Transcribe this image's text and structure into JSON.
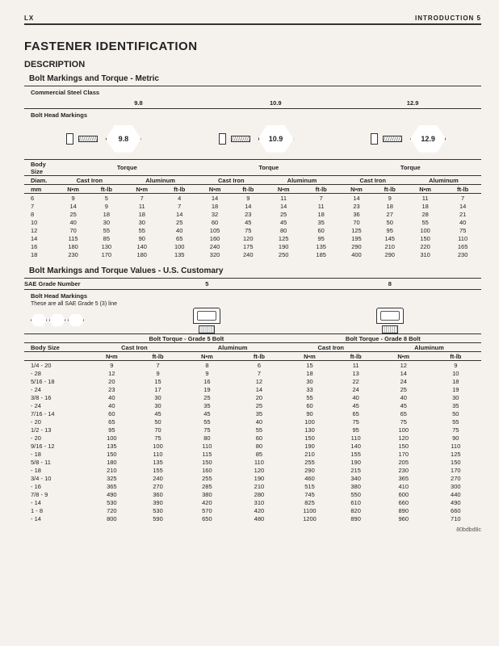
{
  "header": {
    "left": "LX",
    "right": "INTRODUCTION    5"
  },
  "title": "FASTENER IDENTIFICATION",
  "subtitle": "DESCRIPTION",
  "footer_code": "80bdbd8c",
  "metric": {
    "heading": "Bolt Markings and Torque - Metric",
    "class_label": "Commercial Steel Class",
    "classes": [
      "9.8",
      "10.9",
      "12.9"
    ],
    "markings_label": "Bolt Head Markings",
    "body_size_label": "Body\nSize",
    "torque_label": "Torque",
    "diam_label": "Diam.",
    "materials": [
      "Cast Iron",
      "Aluminum"
    ],
    "unit_nm": "N•m",
    "unit_ftlb": "ft-lb",
    "mm_label": "mm",
    "rows": [
      {
        "mm": "6",
        "v": [
          "9",
          "5",
          "7",
          "4",
          "14",
          "9",
          "11",
          "7",
          "14",
          "9",
          "11",
          "7"
        ]
      },
      {
        "mm": "7",
        "v": [
          "14",
          "9",
          "11",
          "7",
          "18",
          "14",
          "14",
          "11",
          "23",
          "18",
          "18",
          "14"
        ]
      },
      {
        "mm": "8",
        "v": [
          "25",
          "18",
          "18",
          "14",
          "32",
          "23",
          "25",
          "18",
          "36",
          "27",
          "28",
          "21"
        ]
      },
      {
        "mm": "10",
        "v": [
          "40",
          "30",
          "30",
          "25",
          "60",
          "45",
          "45",
          "35",
          "70",
          "50",
          "55",
          "40"
        ]
      },
      {
        "mm": "12",
        "v": [
          "70",
          "55",
          "55",
          "40",
          "105",
          "75",
          "80",
          "60",
          "125",
          "95",
          "100",
          "75"
        ]
      },
      {
        "mm": "14",
        "v": [
          "115",
          "85",
          "90",
          "65",
          "160",
          "120",
          "125",
          "95",
          "195",
          "145",
          "150",
          "110"
        ]
      },
      {
        "mm": "16",
        "v": [
          "180",
          "130",
          "140",
          "100",
          "240",
          "175",
          "190",
          "135",
          "290",
          "210",
          "220",
          "165"
        ]
      },
      {
        "mm": "18",
        "v": [
          "230",
          "170",
          "180",
          "135",
          "320",
          "240",
          "250",
          "185",
          "400",
          "290",
          "310",
          "230"
        ]
      }
    ]
  },
  "us": {
    "heading": "Bolt Markings and Torque Values - U.S. Customary",
    "sae_label": "SAE Grade Number",
    "grades": [
      "5",
      "8"
    ],
    "markings_label": "Bolt Head Markings",
    "markings_note": "These are all SAE Grade 5 (3) line",
    "torque5": "Bolt Torque - Grade 5 Bolt",
    "torque8": "Bolt Torque - Grade 8 Bolt",
    "body_size_label": "Body Size",
    "materials": [
      "Cast Iron",
      "Aluminum"
    ],
    "unit_nm": "N•m",
    "unit_ftlb": "ft-lb",
    "rows": [
      {
        "s": "1/4 - 20",
        "v": [
          "9",
          "7",
          "8",
          "6",
          "15",
          "11",
          "12",
          "9"
        ]
      },
      {
        "s": "- 28",
        "v": [
          "12",
          "9",
          "9",
          "7",
          "18",
          "13",
          "14",
          "10"
        ]
      },
      {
        "s": "5/16 - 18",
        "v": [
          "20",
          "15",
          "16",
          "12",
          "30",
          "22",
          "24",
          "18"
        ]
      },
      {
        "s": "- 24",
        "v": [
          "23",
          "17",
          "19",
          "14",
          "33",
          "24",
          "25",
          "19"
        ]
      },
      {
        "s": "3/8 - 16",
        "v": [
          "40",
          "30",
          "25",
          "20",
          "55",
          "40",
          "40",
          "30"
        ]
      },
      {
        "s": "- 24",
        "v": [
          "40",
          "30",
          "35",
          "25",
          "60",
          "45",
          "45",
          "35"
        ]
      },
      {
        "s": "7/16 - 14",
        "v": [
          "60",
          "45",
          "45",
          "35",
          "90",
          "65",
          "65",
          "50"
        ]
      },
      {
        "s": "- 20",
        "v": [
          "65",
          "50",
          "55",
          "40",
          "100",
          "75",
          "75",
          "55"
        ]
      },
      {
        "s": "1/2 - 13",
        "v": [
          "95",
          "70",
          "75",
          "55",
          "130",
          "95",
          "100",
          "75"
        ]
      },
      {
        "s": "- 20",
        "v": [
          "100",
          "75",
          "80",
          "60",
          "150",
          "110",
          "120",
          "90"
        ]
      },
      {
        "s": "9/16 - 12",
        "v": [
          "135",
          "100",
          "110",
          "80",
          "190",
          "140",
          "150",
          "110"
        ]
      },
      {
        "s": "- 18",
        "v": [
          "150",
          "110",
          "115",
          "85",
          "210",
          "155",
          "170",
          "125"
        ]
      },
      {
        "s": "5/8 - 11",
        "v": [
          "180",
          "135",
          "150",
          "110",
          "255",
          "190",
          "205",
          "150"
        ]
      },
      {
        "s": "- 18",
        "v": [
          "210",
          "155",
          "160",
          "120",
          "290",
          "215",
          "230",
          "170"
        ]
      },
      {
        "s": "3/4 - 10",
        "v": [
          "325",
          "240",
          "255",
          "190",
          "460",
          "340",
          "365",
          "270"
        ]
      },
      {
        "s": "- 16",
        "v": [
          "365",
          "270",
          "285",
          "210",
          "515",
          "380",
          "410",
          "300"
        ]
      },
      {
        "s": "7/8 - 9",
        "v": [
          "490",
          "360",
          "380",
          "280",
          "745",
          "550",
          "600",
          "440"
        ]
      },
      {
        "s": "- 14",
        "v": [
          "530",
          "390",
          "420",
          "310",
          "825",
          "610",
          "660",
          "490"
        ]
      },
      {
        "s": "1 - 8",
        "v": [
          "720",
          "530",
          "570",
          "420",
          "1100",
          "820",
          "890",
          "660"
        ]
      },
      {
        "s": "- 14",
        "v": [
          "800",
          "590",
          "650",
          "480",
          "1200",
          "890",
          "960",
          "710"
        ]
      }
    ]
  }
}
